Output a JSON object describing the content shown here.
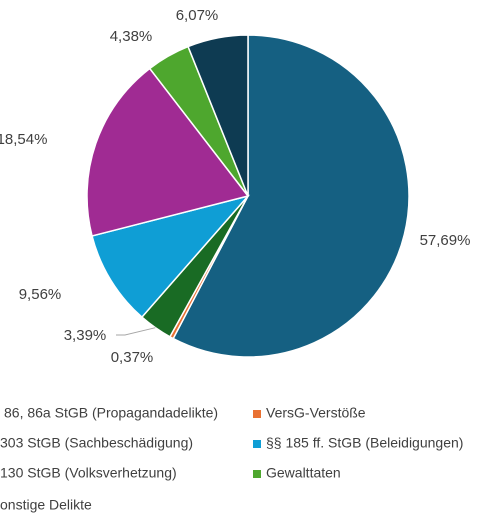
{
  "chart_data": {
    "type": "pie",
    "categories": [
      "86, 86a StGB (Propagandadelikte)",
      "VersG-Verstöße",
      "303 StGB (Sachbeschädigung)",
      "§§ 185 ff. StGB (Beleidigungen)",
      "130 StGB (Volksverhetzung)",
      "Gewalttaten",
      "onstige Delikte"
    ],
    "values": [
      57.69,
      0.37,
      3.39,
      9.56,
      18.54,
      4.38,
      6.07
    ],
    "value_labels": [
      "57,69%",
      "0,37%",
      "3,39%",
      "9,56%",
      "18,54%",
      "4,38%",
      "6,07%"
    ],
    "colors": [
      "#156082",
      "#e97132",
      "#196b24",
      "#0f9ed5",
      "#a02b93",
      "#4ea72e",
      "#0e3b52"
    ],
    "legend": "bottom"
  }
}
